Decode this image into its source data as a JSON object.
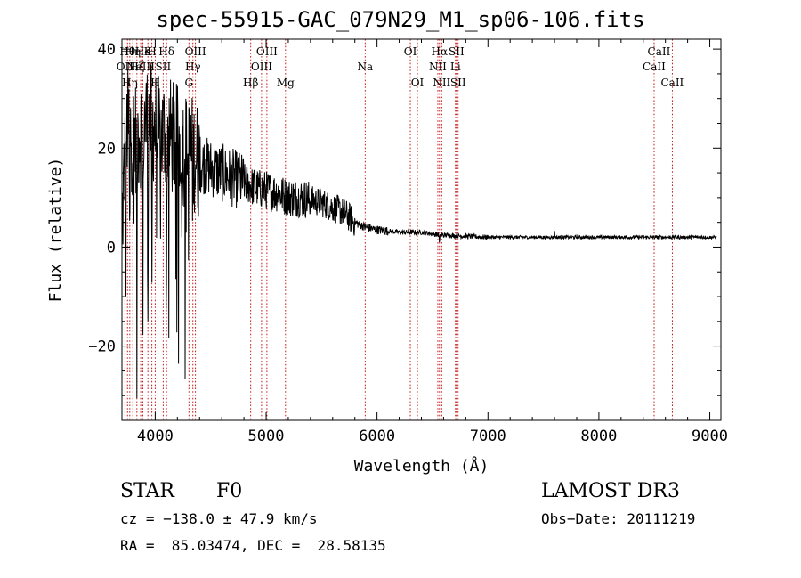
{
  "chart_data": {
    "type": "line",
    "title": "spec-55915-GAC_079N29_M1_sp06-106.fits",
    "xlabel": "Wavelength (Å)",
    "ylabel": "Flux (relative)",
    "xlim": [
      3700,
      9100
    ],
    "ylim": [
      -35,
      42
    ],
    "x_ticks": [
      4000,
      5000,
      6000,
      7000,
      8000,
      9000
    ],
    "y_ticks": [
      -20,
      0,
      20,
      40
    ],
    "x_tick_labels": [
      "4000",
      "5000",
      "6000",
      "7000",
      "8000",
      "9000"
    ],
    "y_tick_labels": [
      "−20",
      "0",
      "20",
      "40"
    ],
    "series": [
      {
        "name": "flux",
        "anchors": [
          [
            3700,
            3
          ],
          [
            3720,
            15
          ],
          [
            3750,
            25
          ],
          [
            3800,
            22
          ],
          [
            3850,
            23
          ],
          [
            3900,
            25
          ],
          [
            3950,
            26
          ],
          [
            4000,
            24
          ],
          [
            4050,
            22
          ],
          [
            4100,
            24
          ],
          [
            4150,
            22
          ],
          [
            4200,
            21
          ],
          [
            4250,
            20
          ],
          [
            4300,
            19
          ],
          [
            4350,
            19
          ],
          [
            4400,
            17
          ],
          [
            4500,
            16
          ],
          [
            4600,
            15
          ],
          [
            4700,
            14
          ],
          [
            4800,
            13
          ],
          [
            4900,
            12
          ],
          [
            5000,
            11.5
          ],
          [
            5100,
            11
          ],
          [
            5200,
            10
          ],
          [
            5300,
            10
          ],
          [
            5400,
            9.5
          ],
          [
            5500,
            9
          ],
          [
            5600,
            8
          ],
          [
            5700,
            7
          ],
          [
            5800,
            5
          ],
          [
            5900,
            4
          ],
          [
            6000,
            3.5
          ],
          [
            6200,
            3
          ],
          [
            6400,
            3
          ],
          [
            6550,
            2.5
          ],
          [
            6700,
            2.3
          ],
          [
            7000,
            2
          ],
          [
            7500,
            2
          ],
          [
            8000,
            2
          ],
          [
            8500,
            2
          ],
          [
            9000,
            2
          ],
          [
            9060,
            2
          ]
        ],
        "noise_bands": [
          [
            3700,
            4400,
            12
          ],
          [
            4400,
            4800,
            6
          ],
          [
            4800,
            5400,
            4
          ],
          [
            5400,
            5800,
            3
          ],
          [
            5800,
            6100,
            0.9
          ],
          [
            6100,
            7000,
            0.5
          ],
          [
            7000,
            9060,
            0.35
          ]
        ],
        "features": [
          {
            "x": 3735,
            "depth": 30
          },
          {
            "x": 3770,
            "depth": 28
          },
          {
            "x": 3835,
            "depth": 48
          },
          {
            "x": 3889,
            "depth": 42
          },
          {
            "x": 3934,
            "depth": 38
          },
          {
            "x": 3970,
            "depth": 40
          },
          {
            "x": 4102,
            "depth": 38
          },
          {
            "x": 4340,
            "depth": 14
          },
          {
            "x": 6563,
            "depth": 2
          },
          {
            "x": 7600,
            "depth": -1
          },
          {
            "x": 8542,
            "depth": 0.5
          }
        ]
      }
    ],
    "lines": [
      {
        "x": 3727,
        "label": "OII",
        "row": 2
      },
      {
        "x": 3750,
        "label": "Hθ",
        "row": 1
      },
      {
        "x": 3771,
        "label": "Hη",
        "row": 3
      },
      {
        "x": 3798,
        "label": "Hη",
        "row": 1
      },
      {
        "x": 3835,
        "label": "Hζ",
        "row": 2
      },
      {
        "x": 3869,
        "label": "NeIII",
        "row": 2
      },
      {
        "x": 3889,
        "label": "He",
        "row": 1
      },
      {
        "x": 3934,
        "label": "K",
        "row": 1
      },
      {
        "x": 3970,
        "label": "H",
        "row": 1
      },
      {
        "x": 4000,
        "label": "H",
        "row": 3
      },
      {
        "x": 4072,
        "label": "SII",
        "row": 2
      },
      {
        "x": 4102,
        "label": "Hδ",
        "row": 1
      },
      {
        "x": 4304,
        "label": "G",
        "row": 3
      },
      {
        "x": 4340,
        "label": "Hγ",
        "row": 2
      },
      {
        "x": 4363,
        "label": "OIII",
        "row": 1
      },
      {
        "x": 4861,
        "label": "Hβ",
        "row": 3
      },
      {
        "x": 4959,
        "label": "OIII",
        "row": 2
      },
      {
        "x": 5007,
        "label": "OIII",
        "row": 1
      },
      {
        "x": 5175,
        "label": "Mg",
        "row": 3
      },
      {
        "x": 5893,
        "label": "Na",
        "row": 2
      },
      {
        "x": 6300,
        "label": "OI",
        "row": 1
      },
      {
        "x": 6364,
        "label": "OI",
        "row": 3
      },
      {
        "x": 6548,
        "label": "NII",
        "row": 2
      },
      {
        "x": 6563,
        "label": "Hα",
        "row": 1
      },
      {
        "x": 6583,
        "label": "NII",
        "row": 3
      },
      {
        "x": 6707,
        "label": "Li",
        "row": 2
      },
      {
        "x": 6716,
        "label": "SII",
        "row": 1
      },
      {
        "x": 6731,
        "label": "SII",
        "row": 3
      },
      {
        "x": 8498,
        "label": "CaII",
        "row": 2
      },
      {
        "x": 8542,
        "label": "CaII",
        "row": 1
      },
      {
        "x": 8662,
        "label": "CaII",
        "row": 3
      }
    ]
  },
  "footer": {
    "class_label": "STAR",
    "subclass": "F0",
    "survey": "LAMOST DR3",
    "cz": "cz = −138.0 ± 47.9 km/s",
    "obs_date": "Obs−Date: 20111219",
    "coords": "RA =  85.03474, DEC =  28.58135"
  }
}
